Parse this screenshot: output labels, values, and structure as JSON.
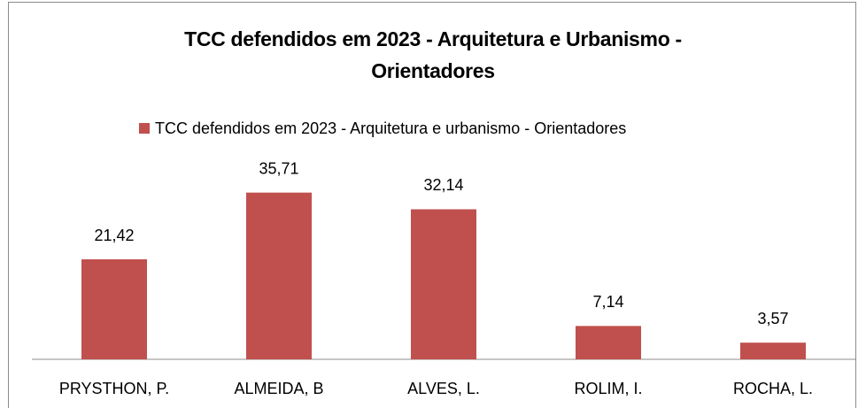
{
  "chart_data": {
    "type": "bar",
    "title": "TCC defendidos em 2023 - Arquitetura e Urbanismo - Orientadores",
    "categories": [
      "PRYSTHON, P.",
      "ALMEIDA, B",
      "ALVES, L.",
      "ROLIM, I.",
      "ROCHA, L."
    ],
    "series": [
      {
        "name": "TCC defendidos em 2023 - Arquitetura e urbanismo - Orientadores",
        "color": "#c0504d",
        "values": [
          21.42,
          35.71,
          32.14,
          7.14,
          3.57
        ],
        "value_labels": [
          "21,42",
          "35,71",
          "32,14",
          "7,14",
          "3,57"
        ]
      }
    ],
    "ylim": [
      0,
      40
    ],
    "legend": "top"
  }
}
